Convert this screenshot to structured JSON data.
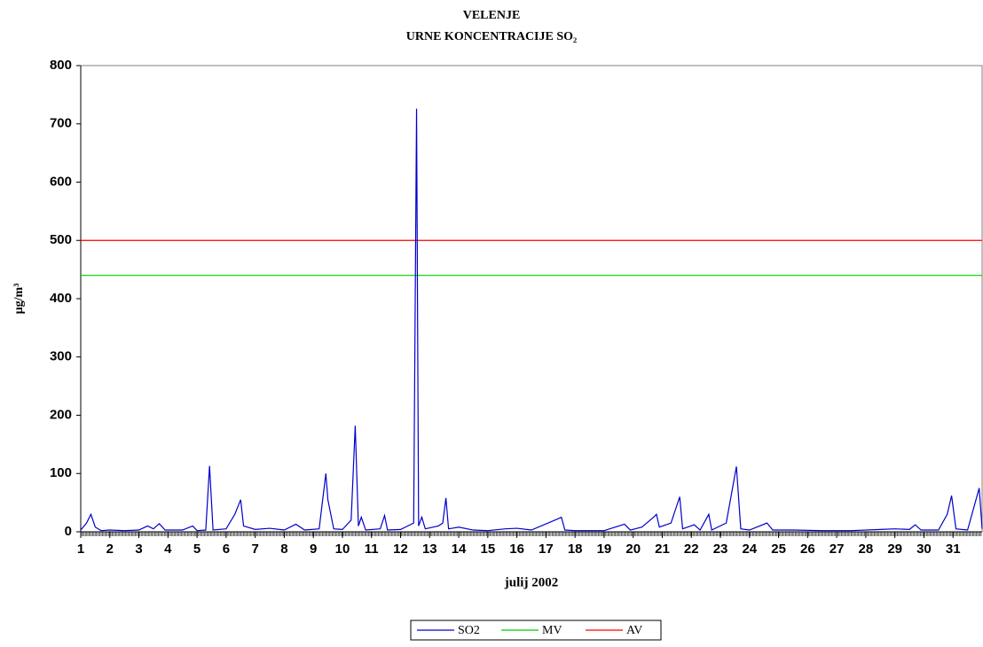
{
  "chart_data": {
    "type": "line",
    "title": "VELENJE",
    "subtitle": "URNE KONCENTRACIJE  SO₂",
    "y_label": "µg/m³",
    "x_label": "julij 2002",
    "xlim": [
      1,
      32
    ],
    "xticks": [
      1,
      2,
      3,
      4,
      5,
      6,
      7,
      8,
      9,
      10,
      11,
      12,
      13,
      14,
      15,
      16,
      17,
      18,
      19,
      20,
      21,
      22,
      23,
      24,
      25,
      26,
      27,
      28,
      29,
      30,
      31
    ],
    "ylim": [
      0,
      800
    ],
    "yticks": [
      0,
      100,
      200,
      300,
      400,
      500,
      600,
      700,
      800
    ],
    "legend": "bottom",
    "series": [
      {
        "name": "SO2",
        "color": "#0000cc",
        "x": [
          1.0,
          1.2,
          1.35,
          1.5,
          1.7,
          2.0,
          2.5,
          3.0,
          3.3,
          3.5,
          3.7,
          3.9,
          4.5,
          4.85,
          5.0,
          5.3,
          5.43,
          5.55,
          6.0,
          6.3,
          6.5,
          6.6,
          7.0,
          7.5,
          8.0,
          8.4,
          8.7,
          9.2,
          9.43,
          9.5,
          9.7,
          10.0,
          10.3,
          10.44,
          10.55,
          10.65,
          10.8,
          11.3,
          11.45,
          11.55,
          12.0,
          12.45,
          12.55,
          12.62,
          12.73,
          12.85,
          13.3,
          13.45,
          13.56,
          13.65,
          14.0,
          14.5,
          15.0,
          15.6,
          16.0,
          16.5,
          17.4,
          17.53,
          17.65,
          18.0,
          19.0,
          19.7,
          19.9,
          20.3,
          20.7,
          20.8,
          20.9,
          21.3,
          21.6,
          21.7,
          22.1,
          22.3,
          22.6,
          22.7,
          23.2,
          23.55,
          23.7,
          24.0,
          24.6,
          24.8,
          25.5,
          26.5,
          27.5,
          28.5,
          29.0,
          29.5,
          29.7,
          29.9,
          30.5,
          30.8,
          30.95,
          31.1,
          31.5,
          31.9,
          32.0
        ],
        "values": [
          3,
          15,
          30,
          8,
          2,
          3,
          2,
          3,
          10,
          5,
          14,
          3,
          3,
          10,
          2,
          3,
          113,
          3,
          5,
          30,
          55,
          10,
          4,
          6,
          3,
          13,
          3,
          5,
          100,
          55,
          5,
          4,
          20,
          182,
          10,
          25,
          3,
          5,
          28,
          3,
          4,
          15,
          726,
          10,
          25,
          5,
          10,
          15,
          58,
          5,
          8,
          3,
          2,
          5,
          6,
          3,
          22,
          25,
          3,
          2,
          2,
          13,
          3,
          8,
          25,
          30,
          8,
          15,
          60,
          5,
          12,
          3,
          30,
          3,
          15,
          112,
          5,
          3,
          15,
          3,
          3,
          2,
          2,
          4,
          5,
          4,
          12,
          3,
          3,
          30,
          62,
          5,
          3,
          75,
          5
        ]
      },
      {
        "name": "MV",
        "color": "#00cc00",
        "x": [
          1,
          32
        ],
        "values": [
          440,
          440
        ]
      },
      {
        "name": "AV",
        "color": "#ff0000",
        "x": [
          1,
          32
        ],
        "values": [
          500,
          500
        ]
      }
    ]
  }
}
